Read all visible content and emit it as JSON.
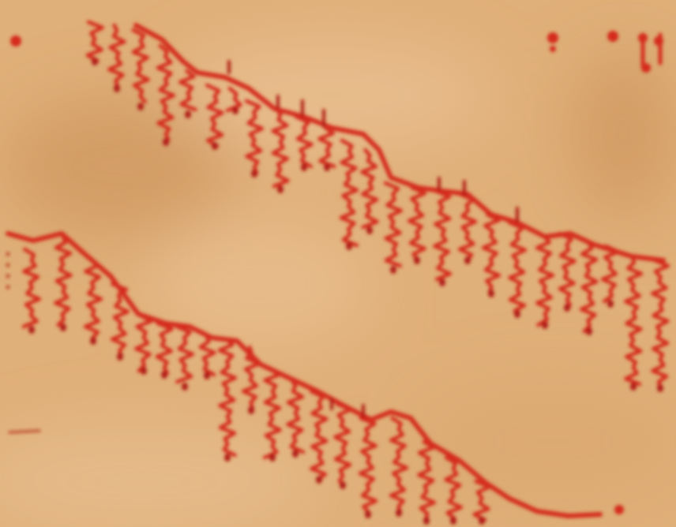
{
  "image": {
    "subject": "red-inked-strokes-on-paper",
    "colors": {
      "paper": "#e0b07a",
      "paper_light": "#ecc597",
      "paper_shadow": "#c98e56",
      "ink": "#d42a1c",
      "ink_dark": "#b01a12"
    }
  }
}
